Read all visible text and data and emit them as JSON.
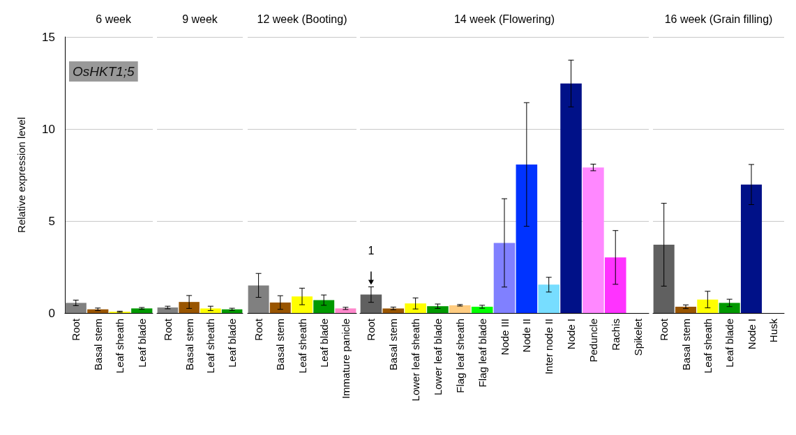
{
  "chart_data": [
    {
      "type": "bar",
      "title": "6 week",
      "ylabel": "Relative expression level",
      "annotations": [
        "OsHKT1;5"
      ],
      "categories": [
        "Root",
        "Basal stem",
        "Leaf sheath",
        "Leaf blade"
      ],
      "values": [
        0.55,
        0.2,
        0.07,
        0.25
      ],
      "errors": [
        0.15,
        0.07,
        0.03,
        0.05
      ],
      "colors": [
        "#808080",
        "#995500",
        "#ffff00",
        "#009900"
      ],
      "ylim": [
        0,
        15
      ],
      "yticks": [
        0,
        5,
        10,
        15
      ],
      "grid": "y"
    },
    {
      "type": "bar",
      "title": "9 week",
      "categories": [
        "Root",
        "Basal stem",
        "Leaf sheath",
        "Leaf blade"
      ],
      "values": [
        0.3,
        0.6,
        0.25,
        0.2
      ],
      "errors": [
        0.07,
        0.35,
        0.12,
        0.06
      ],
      "colors": [
        "#808080",
        "#995500",
        "#ffff00",
        "#009900"
      ],
      "ylim": [
        0,
        15
      ],
      "yticks": [
        0,
        5,
        10,
        15
      ],
      "grid": "y",
      "tick_labels": "x"
    },
    {
      "type": "bar",
      "title": "12 week (Booting)",
      "categories": [
        "Root",
        "Basal stem",
        "Leaf sheath",
        "Leaf blade",
        "Immature panicle"
      ],
      "values": [
        1.5,
        0.57,
        0.9,
        0.7,
        0.25
      ],
      "errors": [
        0.65,
        0.37,
        0.45,
        0.28,
        0.06
      ],
      "colors": [
        "#808080",
        "#995500",
        "#ffff00",
        "#009900",
        "#ff88cc"
      ],
      "ylim": [
        0,
        15
      ],
      "yticks": [
        0,
        5,
        10,
        15
      ],
      "grid": "y",
      "tick_labels": "x"
    },
    {
      "type": "bar",
      "title": "14 week (Flowering)",
      "annotations": [
        {
          "text": "1",
          "x": "Root",
          "y": 1.42
        }
      ],
      "categories": [
        "Root",
        "Basal stem",
        "Lower leaf sheath",
        "Lower leaf blade",
        "Flag leaf sheath",
        "Flag leaf blade",
        "Node III",
        "Node II",
        "Inter node II",
        "Node I",
        "Peduncle",
        "Rachis",
        "Spikelet"
      ],
      "values": [
        1.0,
        0.25,
        0.52,
        0.37,
        0.42,
        0.34,
        3.81,
        8.07,
        1.54,
        12.47,
        7.91,
        3.02,
        null
      ],
      "errors": [
        0.42,
        0.07,
        0.3,
        0.12,
        0.04,
        0.08,
        2.4,
        3.36,
        0.4,
        1.27,
        0.18,
        1.46,
        null
      ],
      "colors": [
        "#606060",
        "#995500",
        "#ffff00",
        "#009900",
        "#ffcc80",
        "#00ff00",
        "#8080ff",
        "#0033ff",
        "#77ddff",
        "#001188",
        "#ff88ff",
        "#ff33ff",
        "#333333"
      ],
      "ylim": [
        0,
        15
      ],
      "yticks": [
        0,
        5,
        10,
        15
      ],
      "grid": "y",
      "tick_labels": "x"
    },
    {
      "type": "bar",
      "title": "16 week (Grain filling)",
      "categories": [
        "Root",
        "Basal stem",
        "Leaf sheath",
        "Leaf blade",
        "Node I",
        "Husk"
      ],
      "values": [
        3.71,
        0.34,
        0.73,
        0.55,
        6.98,
        0
      ],
      "errors": [
        2.25,
        0.1,
        0.45,
        0.2,
        1.09,
        null
      ],
      "colors": [
        "#606060",
        "#995500",
        "#ffff00",
        "#009900",
        "#001188",
        "#333333"
      ],
      "ylim": [
        0,
        15
      ],
      "yticks": [
        0,
        5,
        10,
        15
      ],
      "grid": "y",
      "tick_labels": "x"
    }
  ]
}
